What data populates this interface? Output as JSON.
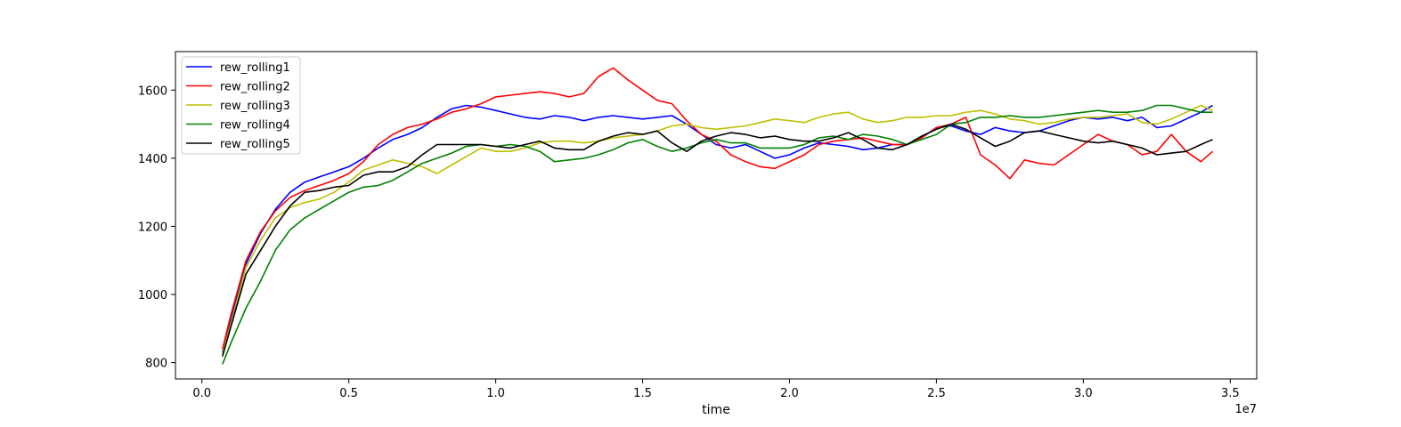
{
  "chart_data": {
    "type": "line",
    "title": "",
    "xlabel": "time",
    "ylabel": "",
    "x_offset_label": "1e7",
    "xlim": [
      -0.09,
      3.59
    ],
    "ylim": [
      752,
      1713
    ],
    "x_ticks": [
      0.0,
      0.5,
      1.0,
      1.5,
      2.0,
      2.5,
      3.0,
      3.5
    ],
    "x_tick_labels": [
      "0.0",
      "0.5",
      "1.0",
      "1.5",
      "2.0",
      "2.5",
      "3.0",
      "3.5"
    ],
    "y_ticks": [
      800,
      1000,
      1200,
      1400,
      1600
    ],
    "y_tick_labels": [
      "800",
      "1000",
      "1200",
      "1400",
      "1600"
    ],
    "grid": false,
    "legend_position": "top-left",
    "series": [
      {
        "name": "rew_rolling1",
        "color": "#0000ff",
        "x": [
          0.07,
          0.1,
          0.15,
          0.2,
          0.25,
          0.3,
          0.35,
          0.4,
          0.45,
          0.5,
          0.55,
          0.6,
          0.65,
          0.7,
          0.75,
          0.8,
          0.85,
          0.9,
          0.95,
          1.0,
          1.05,
          1.1,
          1.15,
          1.2,
          1.25,
          1.3,
          1.35,
          1.4,
          1.45,
          1.5,
          1.55,
          1.6,
          1.65,
          1.7,
          1.75,
          1.8,
          1.85,
          1.9,
          1.95,
          2.0,
          2.05,
          2.1,
          2.15,
          2.2,
          2.25,
          2.3,
          2.35,
          2.4,
          2.45,
          2.5,
          2.55,
          2.6,
          2.65,
          2.7,
          2.75,
          2.8,
          2.85,
          2.9,
          2.95,
          3.0,
          3.05,
          3.1,
          3.15,
          3.2,
          3.25,
          3.3,
          3.35,
          3.4,
          3.44
        ],
        "y": [
          830,
          930,
          1090,
          1180,
          1250,
          1300,
          1330,
          1345,
          1360,
          1375,
          1400,
          1430,
          1455,
          1470,
          1490,
          1520,
          1545,
          1555,
          1550,
          1540,
          1530,
          1520,
          1515,
          1525,
          1520,
          1510,
          1520,
          1525,
          1520,
          1515,
          1520,
          1525,
          1500,
          1470,
          1440,
          1430,
          1440,
          1420,
          1400,
          1410,
          1430,
          1445,
          1440,
          1435,
          1425,
          1430,
          1440,
          1440,
          1460,
          1490,
          1495,
          1480,
          1470,
          1490,
          1480,
          1475,
          1480,
          1495,
          1510,
          1520,
          1515,
          1520,
          1510,
          1520,
          1490,
          1495,
          1515,
          1535,
          1555
        ]
      },
      {
        "name": "rew_rolling2",
        "color": "#ff0000",
        "x": [
          0.07,
          0.1,
          0.15,
          0.2,
          0.25,
          0.3,
          0.35,
          0.4,
          0.45,
          0.5,
          0.55,
          0.6,
          0.65,
          0.7,
          0.75,
          0.8,
          0.85,
          0.9,
          0.95,
          1.0,
          1.05,
          1.1,
          1.15,
          1.2,
          1.25,
          1.3,
          1.35,
          1.4,
          1.45,
          1.5,
          1.55,
          1.6,
          1.65,
          1.7,
          1.75,
          1.8,
          1.85,
          1.9,
          1.95,
          2.0,
          2.05,
          2.1,
          2.15,
          2.2,
          2.25,
          2.3,
          2.35,
          2.4,
          2.45,
          2.5,
          2.55,
          2.6,
          2.65,
          2.7,
          2.75,
          2.8,
          2.85,
          2.9,
          2.95,
          3.0,
          3.05,
          3.1,
          3.15,
          3.2,
          3.25,
          3.3,
          3.35,
          3.4,
          3.44
        ],
        "y": [
          840,
          945,
          1100,
          1185,
          1245,
          1285,
          1305,
          1320,
          1335,
          1355,
          1390,
          1440,
          1470,
          1490,
          1500,
          1515,
          1535,
          1545,
          1560,
          1580,
          1585,
          1590,
          1595,
          1590,
          1580,
          1590,
          1640,
          1665,
          1630,
          1600,
          1570,
          1560,
          1510,
          1470,
          1450,
          1410,
          1390,
          1375,
          1370,
          1390,
          1410,
          1440,
          1450,
          1455,
          1460,
          1450,
          1440,
          1440,
          1460,
          1490,
          1500,
          1520,
          1410,
          1380,
          1340,
          1395,
          1385,
          1380,
          1410,
          1440,
          1470,
          1450,
          1440,
          1410,
          1420,
          1470,
          1420,
          1390,
          1420
        ]
      },
      {
        "name": "rew_rolling3",
        "color": "#bfbf00",
        "x": [
          0.07,
          0.1,
          0.15,
          0.2,
          0.25,
          0.3,
          0.35,
          0.4,
          0.45,
          0.5,
          0.55,
          0.6,
          0.65,
          0.7,
          0.75,
          0.8,
          0.85,
          0.9,
          0.95,
          1.0,
          1.05,
          1.1,
          1.15,
          1.2,
          1.25,
          1.3,
          1.35,
          1.4,
          1.45,
          1.5,
          1.55,
          1.6,
          1.65,
          1.7,
          1.75,
          1.8,
          1.85,
          1.9,
          1.95,
          2.0,
          2.05,
          2.1,
          2.15,
          2.2,
          2.25,
          2.3,
          2.35,
          2.4,
          2.45,
          2.5,
          2.55,
          2.6,
          2.65,
          2.7,
          2.75,
          2.8,
          2.85,
          2.9,
          2.95,
          3.0,
          3.05,
          3.1,
          3.15,
          3.2,
          3.25,
          3.3,
          3.35,
          3.4,
          3.44
        ],
        "y": [
          825,
          920,
          1080,
          1160,
          1225,
          1255,
          1270,
          1280,
          1300,
          1330,
          1365,
          1380,
          1395,
          1385,
          1375,
          1355,
          1380,
          1405,
          1430,
          1420,
          1420,
          1430,
          1445,
          1450,
          1450,
          1445,
          1450,
          1460,
          1465,
          1470,
          1480,
          1495,
          1500,
          1490,
          1485,
          1490,
          1495,
          1505,
          1515,
          1510,
          1505,
          1520,
          1530,
          1535,
          1515,
          1505,
          1510,
          1520,
          1520,
          1525,
          1525,
          1535,
          1540,
          1530,
          1515,
          1510,
          1500,
          1505,
          1515,
          1520,
          1520,
          1525,
          1530,
          1505,
          1500,
          1515,
          1535,
          1555,
          1540
        ]
      },
      {
        "name": "rew_rolling4",
        "color": "#008000",
        "x": [
          0.07,
          0.1,
          0.15,
          0.2,
          0.25,
          0.3,
          0.35,
          0.4,
          0.45,
          0.5,
          0.55,
          0.6,
          0.65,
          0.7,
          0.75,
          0.8,
          0.85,
          0.9,
          0.95,
          1.0,
          1.05,
          1.1,
          1.15,
          1.2,
          1.25,
          1.3,
          1.35,
          1.4,
          1.45,
          1.5,
          1.55,
          1.6,
          1.65,
          1.7,
          1.75,
          1.8,
          1.85,
          1.9,
          1.95,
          2.0,
          2.05,
          2.1,
          2.15,
          2.2,
          2.25,
          2.3,
          2.35,
          2.4,
          2.45,
          2.5,
          2.55,
          2.6,
          2.65,
          2.7,
          2.75,
          2.8,
          2.85,
          2.9,
          2.95,
          3.0,
          3.05,
          3.1,
          3.15,
          3.2,
          3.25,
          3.3,
          3.35,
          3.4,
          3.44
        ],
        "y": [
          795,
          860,
          960,
          1040,
          1130,
          1190,
          1225,
          1250,
          1275,
          1300,
          1315,
          1320,
          1335,
          1360,
          1385,
          1400,
          1415,
          1435,
          1440,
          1435,
          1440,
          1435,
          1420,
          1390,
          1395,
          1400,
          1410,
          1425,
          1445,
          1455,
          1435,
          1420,
          1430,
          1445,
          1455,
          1445,
          1445,
          1430,
          1430,
          1430,
          1440,
          1460,
          1465,
          1455,
          1470,
          1465,
          1455,
          1440,
          1455,
          1470,
          1500,
          1505,
          1520,
          1520,
          1525,
          1520,
          1520,
          1525,
          1530,
          1535,
          1540,
          1535,
          1535,
          1540,
          1555,
          1555,
          1545,
          1535,
          1535
        ]
      },
      {
        "name": "rew_rolling5",
        "color": "#000000",
        "x": [
          0.07,
          0.1,
          0.15,
          0.2,
          0.25,
          0.3,
          0.35,
          0.4,
          0.45,
          0.5,
          0.55,
          0.6,
          0.65,
          0.7,
          0.75,
          0.8,
          0.85,
          0.9,
          0.95,
          1.0,
          1.05,
          1.1,
          1.15,
          1.2,
          1.25,
          1.3,
          1.35,
          1.4,
          1.45,
          1.5,
          1.55,
          1.6,
          1.65,
          1.7,
          1.75,
          1.8,
          1.85,
          1.9,
          1.95,
          2.0,
          2.05,
          2.1,
          2.15,
          2.2,
          2.25,
          2.3,
          2.35,
          2.4,
          2.45,
          2.5,
          2.55,
          2.6,
          2.65,
          2.7,
          2.75,
          2.8,
          2.85,
          2.9,
          2.95,
          3.0,
          3.05,
          3.1,
          3.15,
          3.2,
          3.25,
          3.3,
          3.35,
          3.4,
          3.44
        ],
        "y": [
          818,
          910,
          1060,
          1130,
          1200,
          1260,
          1300,
          1305,
          1315,
          1320,
          1350,
          1360,
          1360,
          1375,
          1410,
          1440,
          1440,
          1440,
          1440,
          1435,
          1430,
          1440,
          1450,
          1430,
          1425,
          1425,
          1450,
          1465,
          1475,
          1470,
          1480,
          1445,
          1420,
          1450,
          1465,
          1475,
          1470,
          1460,
          1465,
          1455,
          1450,
          1450,
          1460,
          1475,
          1455,
          1430,
          1425,
          1440,
          1465,
          1485,
          1500,
          1485,
          1460,
          1435,
          1450,
          1475,
          1480,
          1470,
          1460,
          1450,
          1445,
          1450,
          1440,
          1430,
          1410,
          1415,
          1420,
          1440,
          1455
        ]
      }
    ]
  }
}
